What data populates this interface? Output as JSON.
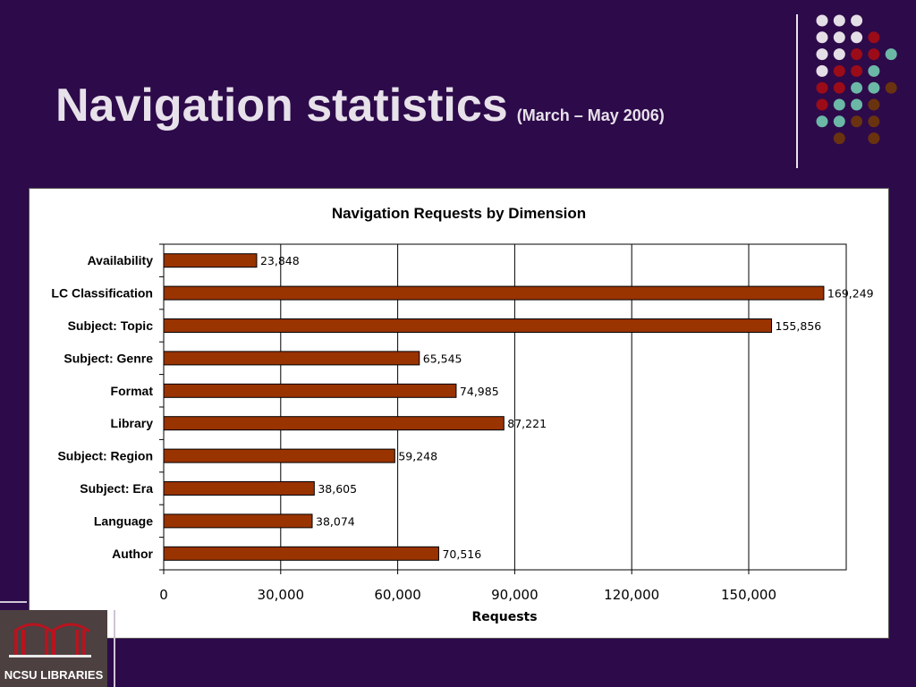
{
  "slide": {
    "title": "Navigation statistics",
    "subtitle": "(March – May 2006)"
  },
  "logo": {
    "text": "NCSU LIBRARIES"
  },
  "colors": {
    "background": "#2d0a4a",
    "bar": "#993300",
    "dot_light": "#e4dfe6",
    "dot_red": "#9b0c18",
    "dot_teal": "#6bb8a6",
    "dot_brown": "#6a3310"
  },
  "chart_data": {
    "type": "bar",
    "orientation": "horizontal",
    "title": "Navigation Requests by Dimension",
    "xlabel": "Requests",
    "ylabel": "",
    "categories": [
      "Availability",
      "LC Classification",
      "Subject: Topic",
      "Subject: Genre",
      "Format",
      "Library",
      "Subject: Region",
      "Subject: Era",
      "Language",
      "Author"
    ],
    "values": [
      23848,
      169249,
      155856,
      65545,
      74985,
      87221,
      59248,
      38605,
      38074,
      70516
    ],
    "value_labels": [
      "23,848",
      "169,249",
      "155,856",
      "65,545",
      "74,985",
      "87,221",
      "59,248",
      "38,605",
      "38,074",
      "70,516"
    ],
    "xlim": [
      0,
      175000
    ],
    "x_ticks": [
      0,
      30000,
      60000,
      90000,
      120000,
      150000
    ],
    "x_tick_labels": [
      "0",
      "30,000",
      "60,000",
      "90,000",
      "120,000",
      "150,000"
    ],
    "grid": true,
    "legend": "none"
  }
}
